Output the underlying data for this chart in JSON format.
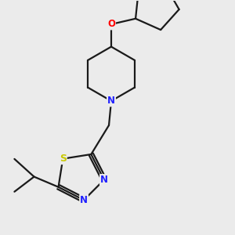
{
  "bg_color": "#ebebeb",
  "bond_color": "#1a1a1a",
  "bond_width": 1.6,
  "atom_colors": {
    "N": "#2020ff",
    "S": "#c8c800",
    "O": "#ff0000",
    "C": "#1a1a1a"
  },
  "font_size_atom": 8.5,
  "fig_size": [
    3.0,
    3.0
  ],
  "dpi": 100,
  "xlim": [
    0.5,
    5.5
  ],
  "ylim": [
    0.3,
    5.3
  ]
}
